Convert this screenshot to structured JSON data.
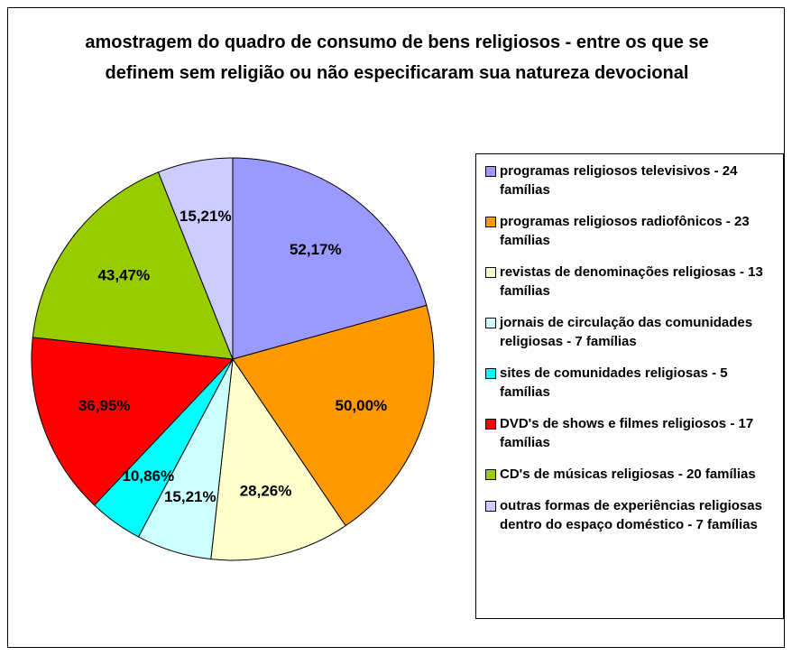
{
  "chart_data": {
    "type": "pie",
    "title": "amostragem do quadro de consumo de bens religiosos - entre os que se definem sem religião ou não especificaram sua natureza devocional",
    "categories": [
      "programas religiosos televisivos - 24 famílias",
      "programas religiosos radiofônicos - 23 famílias",
      "revistas de denominações religiosas - 13 famílias",
      "jornais de circulação das comunidades religiosas - 7 famílias",
      "sites de comunidades religiosas - 5 famílias",
      "DVD's de shows e filmes religiosos - 17 famílias",
      "CD's de músicas religiosas - 20 famílias",
      "outras formas de experiências religiosas dentro do espaço doméstico - 7 famílias"
    ],
    "values": [
      52.17,
      50,
      28.26,
      15.21,
      10.86,
      36.95,
      43.47,
      15.21
    ],
    "value_labels": [
      "52,17%",
      "50,00%",
      "28,26%",
      "15,21%",
      "10,86%",
      "36,95%",
      "43,47%",
      "15,21%"
    ],
    "colors": [
      "#9999ff",
      "#ff9900",
      "#ffffcc",
      "#ccffff",
      "#00ffff",
      "#ff0000",
      "#99cc00",
      "#ccccff"
    ],
    "legend": "right"
  }
}
